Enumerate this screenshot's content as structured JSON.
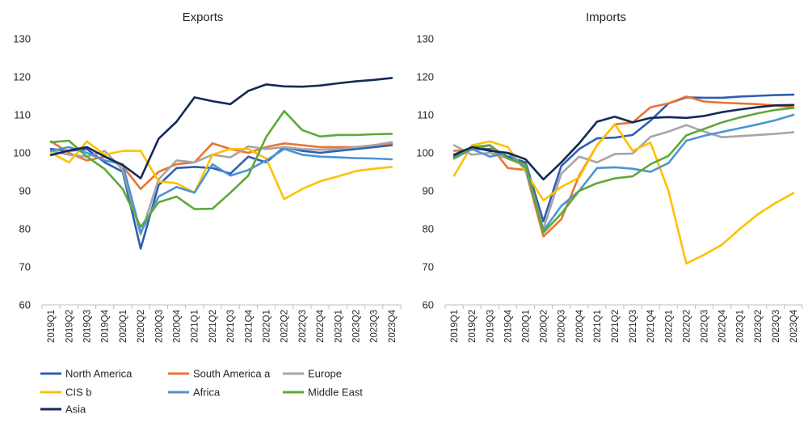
{
  "colors": {
    "North America": "#2f5eb3",
    "South America a": "#ec7430",
    "Europe": "#a5a5a5",
    "CIS b": "#ffc000",
    "Africa": "#4b95d4",
    "Middle East": "#5fa83a",
    "Asia": "#132a54"
  },
  "chart_data": [
    {
      "type": "line",
      "title": "Exports",
      "ylim": [
        60,
        130
      ],
      "yticks": [
        60,
        70,
        80,
        90,
        100,
        110,
        120,
        130
      ],
      "grid": false,
      "categories": [
        "2019Q1",
        "2019Q2",
        "2019Q3",
        "2019Q4",
        "2020Q1",
        "2020Q2",
        "2020Q3",
        "2020Q4",
        "2021Q1",
        "2021Q2",
        "2021Q3",
        "2021Q4",
        "2022Q1",
        "2022Q2",
        "2022Q3",
        "2022Q4",
        "2023Q1",
        "2023Q2",
        "2023Q3",
        "2023Q4"
      ],
      "series": [
        {
          "name": "North America",
          "values": [
            101,
            100.5,
            101,
            97.5,
            95,
            74.8,
            91.5,
            96,
            96.3,
            96,
            94.5,
            99,
            97.5,
            101.5,
            100.5,
            100,
            100.5,
            101,
            101.5,
            102
          ]
        },
        {
          "name": "South America a",
          "values": [
            103,
            100,
            98,
            99,
            96.5,
            90.5,
            95,
            97,
            97.5,
            102.5,
            101,
            100,
            101.5,
            102.5,
            102,
            101.5,
            101.5,
            101.5,
            102,
            102.5
          ]
        },
        {
          "name": "Europe",
          "values": [
            100.5,
            99.5,
            99,
            100.5,
            95.5,
            78.5,
            93,
            98,
            97.5,
            99.5,
            98.8,
            101.7,
            101,
            101.5,
            101,
            100.8,
            101,
            101.5,
            102,
            102.8
          ]
        },
        {
          "name": "CIS b",
          "values": [
            100,
            97.5,
            103,
            99.5,
            100.5,
            100.5,
            92.5,
            92,
            89.5,
            99.5,
            101,
            101,
            98.5,
            87.8,
            90.5,
            92.5,
            93.8,
            95.2,
            95.8,
            96.3
          ]
        },
        {
          "name": "Africa",
          "values": [
            100.5,
            101.5,
            100,
            98,
            97,
            79,
            88.5,
            91,
            89.5,
            97,
            94,
            95.5,
            98,
            101,
            99.5,
            99,
            98.8,
            98.6,
            98.5,
            98.3
          ]
        },
        {
          "name": "Middle East",
          "values": [
            102.8,
            103.2,
            99,
            95.7,
            90.5,
            80.5,
            87,
            88.5,
            85.2,
            85.3,
            89.5,
            94,
            104.2,
            111,
            106,
            104.3,
            104.7,
            104.7,
            104.9,
            105
          ]
        },
        {
          "name": "Asia",
          "values": [
            99.4,
            100.6,
            101.5,
            99,
            96.8,
            93.3,
            103.7,
            108.2,
            114.6,
            113.6,
            112.8,
            116.3,
            118,
            117.5,
            117.4,
            117.7,
            118.3,
            118.8,
            119.2,
            119.7
          ]
        }
      ]
    },
    {
      "type": "line",
      "title": "Imports",
      "ylim": [
        60,
        130
      ],
      "yticks": [
        60,
        70,
        80,
        90,
        100,
        110,
        120,
        130
      ],
      "grid": false,
      "categories": [
        "2019Q1",
        "2019Q2",
        "2019Q3",
        "2019Q4",
        "2020Q1",
        "2020Q2",
        "2020Q3",
        "2020Q4",
        "2021Q1",
        "2021Q2",
        "2021Q3",
        "2021Q4",
        "2022Q1",
        "2022Q2",
        "2022Q3",
        "2022Q4",
        "2023Q1",
        "2023Q2",
        "2023Q3",
        "2023Q4"
      ],
      "series": [
        {
          "name": "North America",
          "values": [
            99,
            101,
            101,
            99,
            97.5,
            82,
            96.5,
            101,
            103.8,
            104,
            104.7,
            108.5,
            113,
            114.6,
            114.5,
            114.5,
            114.8,
            115,
            115.2,
            115.3
          ]
        },
        {
          "name": "South America a",
          "values": [
            100.5,
            100.8,
            102,
            96,
            95.5,
            78,
            82.5,
            94,
            102,
            107.5,
            108,
            112,
            113,
            114.8,
            113.5,
            113.2,
            113,
            112.8,
            112.5,
            112
          ]
        },
        {
          "name": "Europe",
          "values": [
            102,
            99.5,
            100,
            98.5,
            96.5,
            80,
            94.5,
            99,
            97.5,
            99.7,
            99.8,
            104.2,
            105.6,
            107.3,
            105.6,
            104.1,
            104.4,
            104.7,
            105,
            105.4
          ]
        },
        {
          "name": "CIS b",
          "values": [
            94,
            102,
            103,
            101.5,
            95,
            87.5,
            91,
            93.5,
            102,
            107.5,
            100.5,
            102.7,
            90,
            70.9,
            73.2,
            75.8,
            80,
            83.8,
            86.8,
            89.4
          ]
        },
        {
          "name": "Africa",
          "values": [
            98.5,
            101,
            99,
            100,
            96,
            79.5,
            86,
            90,
            96,
            96.2,
            95.8,
            95,
            97.3,
            103.2,
            104.5,
            105.5,
            106.5,
            107.5,
            108.6,
            110
          ]
        },
        {
          "name": "Middle East",
          "values": [
            98.5,
            101.5,
            102,
            98.5,
            97,
            79,
            84,
            90,
            92,
            93.3,
            93.8,
            97,
            99.2,
            104.6,
            106.3,
            108,
            109.3,
            110.4,
            111.3,
            111.8
          ]
        },
        {
          "name": "Asia",
          "values": [
            99.5,
            101.5,
            100.5,
            100,
            98.3,
            93,
            97.5,
            102.5,
            108.2,
            109.5,
            108,
            109.2,
            109.4,
            109.2,
            109.7,
            110.7,
            111.4,
            112,
            112.5,
            112.6
          ]
        }
      ]
    }
  ],
  "legend": {
    "placement": "bottom",
    "items": [
      "North America",
      "South America a",
      "Europe",
      "CIS b",
      "Africa",
      "Middle East",
      "Asia"
    ]
  }
}
